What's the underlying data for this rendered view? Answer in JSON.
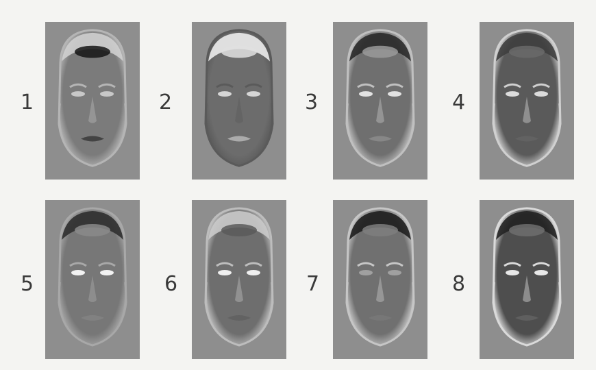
{
  "figure": {
    "panels": [
      {
        "label": "1",
        "icon": "face-eigenimage-icon"
      },
      {
        "label": "2",
        "icon": "face-eigenimage-icon"
      },
      {
        "label": "3",
        "icon": "face-eigenimage-icon"
      },
      {
        "label": "4",
        "icon": "face-eigenimage-icon"
      },
      {
        "label": "5",
        "icon": "face-eigenimage-icon"
      },
      {
        "label": "6",
        "icon": "face-eigenimage-icon"
      },
      {
        "label": "7",
        "icon": "face-eigenimage-icon"
      },
      {
        "label": "8",
        "icon": "face-eigenimage-icon"
      }
    ],
    "colors": {
      "background": "#f4f4f2",
      "panel": "#8e8e8e",
      "label": "#3a3a3a"
    }
  }
}
